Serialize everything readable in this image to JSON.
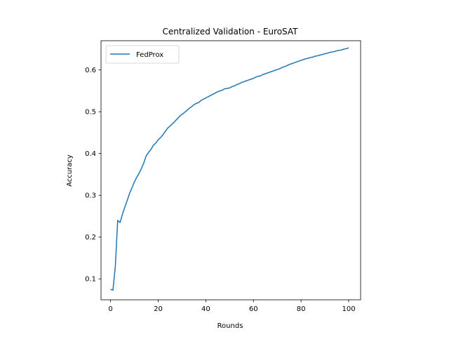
{
  "chart_data": {
    "type": "line",
    "title": "Centralized Validation - EuroSAT",
    "xlabel": "Rounds",
    "ylabel": "Accuracy",
    "xlim": [
      -4,
      105
    ],
    "ylim": [
      0.05,
      0.67
    ],
    "xticks": [
      0,
      20,
      40,
      60,
      80,
      100
    ],
    "yticks": [
      0.1,
      0.2,
      0.3,
      0.4,
      0.5,
      0.6
    ],
    "grid": false,
    "legend": "upper-left",
    "series": [
      {
        "name": "FedProx",
        "color": "#1f77b4",
        "x": [
          0,
          1,
          2,
          3,
          4,
          5,
          6,
          7,
          8,
          9,
          10,
          11,
          12,
          13,
          14,
          15,
          16,
          17,
          18,
          19,
          20,
          21,
          22,
          23,
          24,
          25,
          26,
          27,
          28,
          29,
          30,
          31,
          32,
          33,
          34,
          35,
          36,
          37,
          38,
          39,
          40,
          41,
          42,
          43,
          44,
          45,
          46,
          47,
          48,
          49,
          50,
          51,
          52,
          53,
          54,
          55,
          56,
          57,
          58,
          59,
          60,
          61,
          62,
          63,
          64,
          65,
          66,
          67,
          68,
          69,
          70,
          71,
          72,
          73,
          74,
          75,
          76,
          77,
          78,
          79,
          80,
          81,
          82,
          83,
          84,
          85,
          86,
          87,
          88,
          89,
          90,
          91,
          92,
          93,
          94,
          95,
          96,
          97,
          98,
          99,
          100
        ],
        "y": [
          0.075,
          0.073,
          0.13,
          0.24,
          0.235,
          0.255,
          0.272,
          0.288,
          0.305,
          0.318,
          0.332,
          0.343,
          0.353,
          0.365,
          0.378,
          0.395,
          0.403,
          0.41,
          0.42,
          0.425,
          0.433,
          0.438,
          0.445,
          0.453,
          0.461,
          0.466,
          0.471,
          0.477,
          0.483,
          0.489,
          0.494,
          0.498,
          0.503,
          0.508,
          0.512,
          0.517,
          0.52,
          0.522,
          0.527,
          0.53,
          0.533,
          0.536,
          0.539,
          0.542,
          0.545,
          0.548,
          0.55,
          0.552,
          0.555,
          0.556,
          0.557,
          0.56,
          0.562,
          0.565,
          0.567,
          0.57,
          0.572,
          0.574,
          0.576,
          0.578,
          0.58,
          0.583,
          0.585,
          0.586,
          0.589,
          0.591,
          0.593,
          0.595,
          0.597,
          0.599,
          0.601,
          0.603,
          0.606,
          0.608,
          0.61,
          0.613,
          0.615,
          0.617,
          0.619,
          0.621,
          0.623,
          0.625,
          0.627,
          0.628,
          0.63,
          0.631,
          0.633,
          0.634,
          0.636,
          0.637,
          0.639,
          0.64,
          0.642,
          0.643,
          0.644,
          0.646,
          0.647,
          0.648,
          0.65,
          0.651,
          0.653
        ]
      }
    ]
  }
}
